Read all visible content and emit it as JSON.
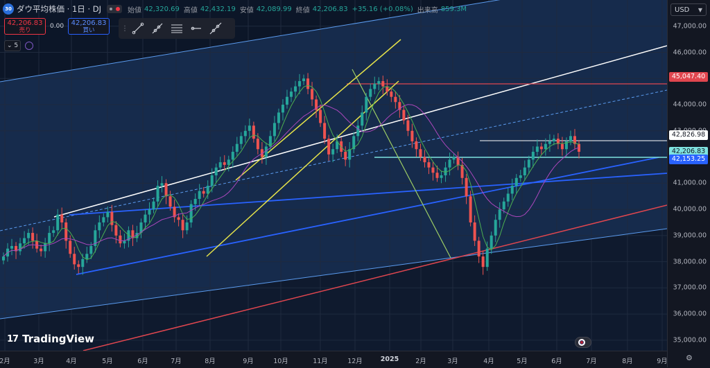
{
  "symbol": {
    "logo_text": "30",
    "name": "ダウ平均株価 · 1日 · DJ",
    "ohlc": [
      {
        "label": "始値",
        "value": "42,320.69"
      },
      {
        "label": "高値",
        "value": "42,432.19"
      },
      {
        "label": "安値",
        "value": "42,089.99"
      },
      {
        "label": "終値",
        "value": "42,206.83"
      },
      {
        "label": "",
        "value": "+35.16 (+0.08%)"
      },
      {
        "label": "出来高",
        "value": "859.3M"
      }
    ]
  },
  "trade": {
    "sell_price": "42,206.83",
    "sell_label": "売り",
    "spread": "0.00",
    "buy_price": "42,206.83",
    "buy_label": "買い"
  },
  "indicators": {
    "count": "5"
  },
  "toolbar": {
    "tools": [
      "trend-line-tool",
      "ray-tool",
      "parallel-channel-tool",
      "horizontal-ray-tool",
      "extended-line-tool"
    ]
  },
  "price_axis": {
    "currency": "USD",
    "ticks": [
      "47,000.00",
      "46,000.00",
      "45,000.00",
      "44,000.00",
      "43,000.00",
      "41,000.00",
      "40,000.00",
      "39,000.00",
      "38,000.00",
      "37,000.00",
      "36,000.00",
      "35,000.00"
    ],
    "labels": {
      "resistance": "45,047.40",
      "high_level": "42,826.98",
      "last_price": "42,206.83",
      "line_level": "42,153.25"
    }
  },
  "time_axis": {
    "ticks": [
      "2月",
      "3月",
      "4月",
      "5月",
      "6月",
      "7月",
      "8月",
      "9月",
      "10月",
      "11月",
      "12月",
      "2025",
      "2月",
      "3月",
      "4月",
      "5月",
      "6月",
      "7月",
      "8月",
      "9月"
    ]
  },
  "watermark": {
    "text": "TradingView"
  },
  "colors": {
    "up": "#26a69a",
    "down": "#ef5350",
    "white_line": "#ffffff",
    "yellow_line": "#e6e34a",
    "blue_line": "#2962ff",
    "channel": "#5b9cf0",
    "red_line": "#e0464f",
    "ma_short": "#4caf50",
    "ma_long": "#ab47bc",
    "cyan_line": "#7fe3e0",
    "green_diag": "#9ccc65"
  },
  "chart_data": {
    "type": "candlestick",
    "title": "ダウ平均株価 · 1日 · DJ",
    "y_range": [
      34600,
      48000
    ],
    "x_start": "2024-02",
    "x_end": "2025-09",
    "series": [
      {
        "name": "price",
        "values": [
          38200,
          38500,
          38600,
          38400,
          38700,
          38900,
          39100,
          38800,
          38500,
          38400,
          38700,
          39100,
          39200,
          39800,
          39500,
          38800,
          38300,
          37900,
          37800,
          38100,
          38300,
          38600,
          39200,
          39500,
          39700,
          39900,
          39400,
          39000,
          38700,
          38800,
          39200,
          38900,
          39100,
          39500,
          39800,
          40000,
          40300,
          40900,
          41000,
          40500,
          40100,
          39700,
          39600,
          39200,
          39500,
          40200,
          40400,
          40700,
          40600,
          40900,
          41300,
          41600,
          41800,
          41700,
          41900,
          42200,
          42500,
          42800,
          43000,
          43200,
          42700,
          42300,
          42000,
          42400,
          42800,
          43300,
          43700,
          44000,
          44300,
          44500,
          44700,
          44900,
          45000,
          44600,
          44200,
          43800,
          43300,
          42700,
          42100,
          42300,
          42600,
          42200,
          41900,
          42300,
          42800,
          43200,
          43700,
          44300,
          44600,
          44800,
          44900,
          44700,
          44500,
          44300,
          44100,
          43800,
          43400,
          43000,
          42600,
          42300,
          42000,
          41800,
          41600,
          41400,
          41200,
          41300,
          41600,
          41900,
          42000,
          41700,
          41200,
          40500,
          39500,
          38800,
          38200,
          37800,
          38500,
          39000,
          39600,
          40000,
          40300,
          40600,
          40900,
          41200,
          41300,
          41600,
          41900,
          42200,
          42400,
          42300,
          42500,
          42600,
          42700,
          42500,
          42300,
          42600,
          42800,
          42500,
          42200
        ]
      },
      {
        "name": "ma_short",
        "values": []
      },
      {
        "name": "ma_long",
        "values": []
      }
    ]
  }
}
